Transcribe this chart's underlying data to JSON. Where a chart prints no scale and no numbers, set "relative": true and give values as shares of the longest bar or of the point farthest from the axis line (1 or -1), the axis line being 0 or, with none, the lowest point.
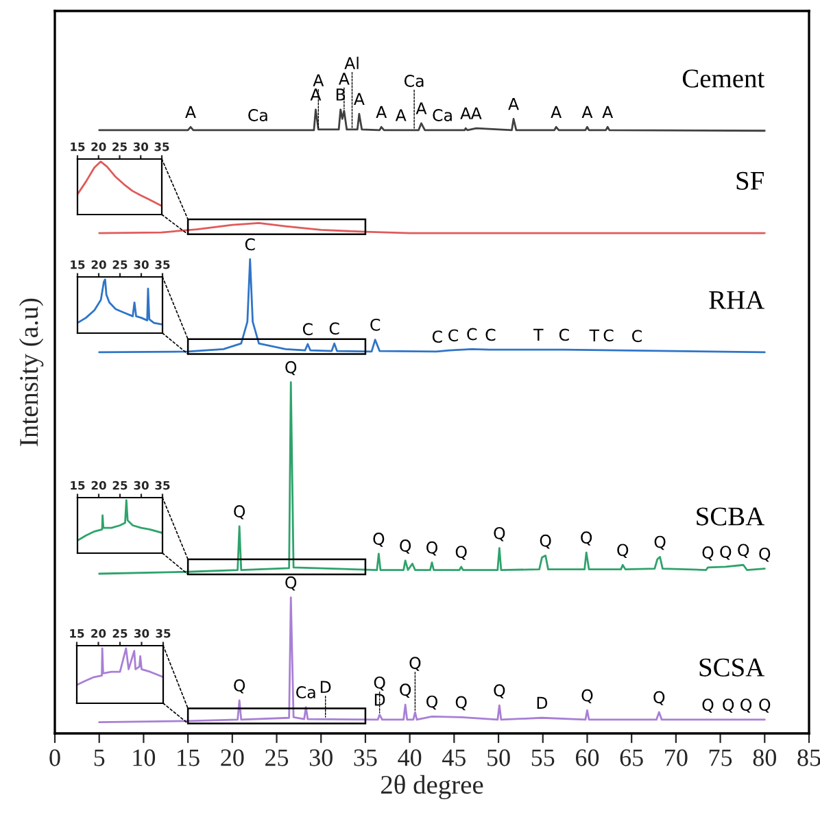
{
  "chart_data": [
    {
      "type": "line",
      "relative": true,
      "xlabel": "2θ degree",
      "ylabel": "Intensity (a.u)",
      "xlim": [
        0,
        85
      ],
      "xticks": [
        0,
        5,
        10,
        15,
        20,
        25,
        30,
        35,
        40,
        45,
        50,
        55,
        60,
        65,
        70,
        75,
        80,
        85
      ],
      "tick_labels": "x",
      "grid": false,
      "legend": false,
      "series": [
        {
          "name": "Cement",
          "color": "#404040",
          "x": [
            5,
            15,
            15.3,
            15.6,
            29.2,
            29.4,
            29.7,
            32.0,
            32.2,
            32.4,
            32.6,
            32.9,
            34.1,
            34.3,
            34.6,
            36.6,
            36.8,
            37.1,
            41.0,
            41.3,
            41.7,
            46.2,
            46.3,
            46.5,
            47.5,
            51.5,
            51.7,
            52.0,
            56.3,
            56.5,
            56.8,
            59.8,
            60.0,
            60.2,
            62.1,
            62.3,
            62.5,
            80
          ],
          "values": [
            0.967,
            0.967,
            0.972,
            0.967,
            0.967,
            1.0,
            0.968,
            0.968,
            1.0,
            0.985,
            0.998,
            0.968,
            0.968,
            0.993,
            0.968,
            0.967,
            0.972,
            0.967,
            0.967,
            0.978,
            0.967,
            0.967,
            0.97,
            0.967,
            0.97,
            0.967,
            0.985,
            0.967,
            0.967,
            0.972,
            0.967,
            0.967,
            0.972,
            0.967,
            0.967,
            0.972,
            0.967,
            0.966
          ]
        },
        {
          "name": "SF",
          "color": "#e05a5a",
          "x": [
            5,
            12,
            16,
            20,
            23,
            26,
            30,
            35,
            40,
            80
          ],
          "values": [
            0.802,
            0.803,
            0.808,
            0.815,
            0.818,
            0.813,
            0.807,
            0.804,
            0.802,
            0.802
          ]
        },
        {
          "name": "RHA",
          "color": "#2e75c8",
          "x": [
            5,
            15,
            19,
            21,
            21.7,
            22.0,
            22.3,
            23,
            26,
            28.2,
            28.5,
            28.8,
            31.2,
            31.5,
            31.8,
            35.7,
            36.1,
            36.6,
            43,
            44.5,
            47.0,
            49,
            57.4,
            80
          ],
          "values": [
            0.611,
            0.612,
            0.616,
            0.625,
            0.66,
            0.76,
            0.66,
            0.625,
            0.616,
            0.614,
            0.624,
            0.614,
            0.613,
            0.625,
            0.613,
            0.612,
            0.631,
            0.613,
            0.612,
            0.614,
            0.616,
            0.615,
            0.615,
            0.611
          ]
        },
        {
          "name": "SCBA",
          "color": "#2ea36b",
          "x": [
            5,
            15,
            20.6,
            20.8,
            21.0,
            26.4,
            26.6,
            26.9,
            36.3,
            36.5,
            36.7,
            39.3,
            39.5,
            39.8,
            40.3,
            40.6,
            42.3,
            42.5,
            42.7,
            45.6,
            45.8,
            46.0,
            49.9,
            50.1,
            50.3,
            54.6,
            54.9,
            55.3,
            55.6,
            59.7,
            59.9,
            60.2,
            63.8,
            64.0,
            64.3,
            67.6,
            67.9,
            68.2,
            68.5,
            73.4,
            73.6,
            75.6,
            77.6,
            78,
            80
          ],
          "values": [
            0.256,
            0.259,
            0.262,
            0.332,
            0.262,
            0.265,
            0.563,
            0.266,
            0.262,
            0.288,
            0.262,
            0.262,
            0.277,
            0.262,
            0.272,
            0.262,
            0.262,
            0.274,
            0.262,
            0.262,
            0.267,
            0.262,
            0.262,
            0.297,
            0.262,
            0.263,
            0.282,
            0.285,
            0.263,
            0.263,
            0.29,
            0.263,
            0.263,
            0.27,
            0.263,
            0.264,
            0.279,
            0.283,
            0.264,
            0.262,
            0.266,
            0.267,
            0.27,
            0.262,
            0.264
          ]
        },
        {
          "name": "SCSA",
          "color": "#a87fd6",
          "x": [
            5,
            15,
            20.6,
            20.8,
            21.0,
            26.4,
            26.6,
            26.9,
            28.1,
            28.3,
            28.5,
            36.4,
            36.6,
            36.9,
            39.3,
            39.5,
            39.7,
            40.4,
            40.6,
            40.8,
            42.5,
            45.8,
            49.9,
            50.1,
            50.3,
            54.9,
            59.8,
            60.0,
            60.2,
            67.8,
            68.1,
            68.4,
            80
          ],
          "values": [
            0.018,
            0.02,
            0.022,
            0.053,
            0.022,
            0.025,
            0.218,
            0.026,
            0.023,
            0.042,
            0.023,
            0.022,
            0.03,
            0.022,
            0.022,
            0.046,
            0.022,
            0.022,
            0.034,
            0.022,
            0.027,
            0.026,
            0.022,
            0.045,
            0.022,
            0.025,
            0.022,
            0.037,
            0.022,
            0.022,
            0.034,
            0.022,
            0.022
          ]
        }
      ],
      "annotations": [
        {
          "text": "A",
          "x": 15.3,
          "y": 0.972
        },
        {
          "text": "Ca",
          "x": 22.9,
          "y": 0.967
        },
        {
          "text": "A",
          "x": 29.4,
          "y": 1.0
        },
        {
          "text": "A",
          "x": 29.7,
          "y": 0.968
        },
        {
          "text": "B",
          "x": 32.2,
          "y": 1.0
        },
        {
          "text": "A",
          "x": 32.6,
          "y": 0.998
        },
        {
          "text": "A",
          "x": 34.3,
          "y": 0.993
        },
        {
          "text": "Al",
          "x": 33.5,
          "y": 0.968
        },
        {
          "text": "A",
          "x": 36.8,
          "y": 0.972
        },
        {
          "text": "A",
          "x": 41.3,
          "y": 0.978
        },
        {
          "text": "A",
          "x": 39.0,
          "y": 0.967
        },
        {
          "text": "Ca",
          "x": 40.5,
          "y": 0.967
        },
        {
          "text": "Ca",
          "x": 43.7,
          "y": 0.967
        },
        {
          "text": "A",
          "x": 46.3,
          "y": 0.97
        },
        {
          "text": "A",
          "x": 47.5,
          "y": 0.97
        },
        {
          "text": "A",
          "x": 51.7,
          "y": 0.985
        },
        {
          "text": "A",
          "x": 56.5,
          "y": 0.972
        },
        {
          "text": "A",
          "x": 60.0,
          "y": 0.972
        },
        {
          "text": "A",
          "x": 62.3,
          "y": 0.972
        },
        {
          "text": "C",
          "x": 22.0,
          "y": 0.76
        },
        {
          "text": "C",
          "x": 28.5,
          "y": 0.624
        },
        {
          "text": "C",
          "x": 31.5,
          "y": 0.625
        },
        {
          "text": "C",
          "x": 36.1,
          "y": 0.631
        },
        {
          "text": "C",
          "x": 43.1,
          "y": 0.612
        },
        {
          "text": "C",
          "x": 44.9,
          "y": 0.614
        },
        {
          "text": "C",
          "x": 47.0,
          "y": 0.616
        },
        {
          "text": "C",
          "x": 49.1,
          "y": 0.615
        },
        {
          "text": "T",
          "x": 54.5,
          "y": 0.615
        },
        {
          "text": "C",
          "x": 57.4,
          "y": 0.615
        },
        {
          "text": "T",
          "x": 60.8,
          "y": 0.614
        },
        {
          "text": "C",
          "x": 62.4,
          "y": 0.614
        },
        {
          "text": "C",
          "x": 65.6,
          "y": 0.613
        },
        {
          "text": "Q",
          "x": 26.6,
          "y": 0.563
        },
        {
          "text": "Q",
          "x": 20.8,
          "y": 0.332
        },
        {
          "text": "Q",
          "x": 36.5,
          "y": 0.288
        },
        {
          "text": "Q",
          "x": 39.5,
          "y": 0.277
        },
        {
          "text": "Q",
          "x": 42.5,
          "y": 0.274
        },
        {
          "text": "Q",
          "x": 45.8,
          "y": 0.267
        },
        {
          "text": "Q",
          "x": 50.1,
          "y": 0.297
        },
        {
          "text": "Q",
          "x": 55.3,
          "y": 0.285
        },
        {
          "text": "Q",
          "x": 59.9,
          "y": 0.29
        },
        {
          "text": "Q",
          "x": 64.0,
          "y": 0.27
        },
        {
          "text": "Q",
          "x": 68.2,
          "y": 0.283
        },
        {
          "text": "Q",
          "x": 73.6,
          "y": 0.266
        },
        {
          "text": "Q",
          "x": 75.6,
          "y": 0.267
        },
        {
          "text": "Q",
          "x": 77.6,
          "y": 0.27
        },
        {
          "text": "Q",
          "x": 80.0,
          "y": 0.264
        },
        {
          "text": "Q",
          "x": 26.6,
          "y": 0.218
        },
        {
          "text": "Q",
          "x": 20.8,
          "y": 0.053
        },
        {
          "text": "Ca",
          "x": 28.3,
          "y": 0.042
        },
        {
          "text": "D",
          "x": 30.5,
          "y": 0.023
        },
        {
          "text": "D",
          "x": 36.6,
          "y": 0.03
        },
        {
          "text": "Q",
          "x": 39.5,
          "y": 0.046
        },
        {
          "text": "Q",
          "x": 36.6,
          "y": 0.03
        },
        {
          "text": "Q",
          "x": 40.6,
          "y": 0.034
        },
        {
          "text": "Q",
          "x": 42.5,
          "y": 0.027
        },
        {
          "text": "Q",
          "x": 45.8,
          "y": 0.026
        },
        {
          "text": "Q",
          "x": 50.1,
          "y": 0.045
        },
        {
          "text": "D",
          "x": 54.9,
          "y": 0.025
        },
        {
          "text": "Q",
          "x": 60.0,
          "y": 0.037
        },
        {
          "text": "Q",
          "x": 68.1,
          "y": 0.034
        },
        {
          "text": "Q",
          "x": 73.6,
          "y": 0.022
        },
        {
          "text": "Q",
          "x": 75.9,
          "y": 0.022
        },
        {
          "text": "Q",
          "x": 77.9,
          "y": 0.022
        },
        {
          "text": "Q",
          "x": 80.0,
          "y": 0.022
        }
      ]
    },
    {
      "type": "line",
      "relative": true,
      "xlim": [
        15,
        35
      ],
      "xticks": [
        15,
        20,
        25,
        30,
        35
      ],
      "tick_labels": "x",
      "series": [
        {
          "color": "#e05a5a",
          "x": [
            15,
            17,
            19,
            20.5,
            22,
            24,
            26,
            28,
            30,
            32,
            35
          ],
          "values": [
            0.35,
            0.6,
            0.88,
            1.0,
            0.9,
            0.7,
            0.55,
            0.42,
            0.33,
            0.25,
            0.12
          ]
        }
      ]
    },
    {
      "type": "line",
      "relative": true,
      "xlim": [
        15,
        35
      ],
      "xticks": [
        15,
        20,
        25,
        30,
        35
      ],
      "tick_labels": "x",
      "series": [
        {
          "color": "#2e75c8",
          "x": [
            15,
            17,
            19,
            20.5,
            21.2,
            21.5,
            21.8,
            22.5,
            24,
            26,
            28,
            28.4,
            28.8,
            30,
            31.4,
            31.6,
            31.9,
            33,
            35
          ],
          "values": [
            0.15,
            0.25,
            0.4,
            0.6,
            0.95,
            1.0,
            0.7,
            0.55,
            0.42,
            0.35,
            0.28,
            0.55,
            0.28,
            0.25,
            0.2,
            0.82,
            0.22,
            0.15,
            0.12
          ]
        }
      ]
    },
    {
      "type": "line",
      "relative": true,
      "xlim": [
        15,
        35
      ],
      "xticks": [
        15,
        20,
        25,
        30,
        35
      ],
      "tick_labels": "x",
      "series": [
        {
          "color": "#2ea36b",
          "x": [
            15,
            17,
            19,
            20.8,
            20.9,
            21.1,
            23,
            25,
            26.2,
            26.5,
            26.8,
            28,
            30,
            32,
            35
          ],
          "values": [
            0.2,
            0.3,
            0.38,
            0.42,
            0.7,
            0.45,
            0.45,
            0.5,
            0.55,
            1.0,
            0.6,
            0.5,
            0.45,
            0.42,
            0.35
          ]
        }
      ]
    },
    {
      "type": "line",
      "relative": true,
      "xlim": [
        15,
        35
      ],
      "xticks": [
        15,
        20,
        25,
        30,
        35
      ],
      "tick_labels": "x",
      "series": [
        {
          "color": "#a87fd6",
          "x": [
            15,
            17,
            19,
            20.8,
            20.9,
            21.1,
            23,
            25,
            26.4,
            27,
            28.3,
            28.6,
            29.5,
            29.7,
            30,
            32,
            35
          ],
          "values": [
            0.3,
            0.38,
            0.45,
            0.48,
            1.0,
            0.52,
            0.55,
            0.55,
            1.0,
            0.6,
            0.95,
            0.6,
            0.65,
            0.85,
            0.6,
            0.55,
            0.45
          ]
        }
      ]
    }
  ]
}
